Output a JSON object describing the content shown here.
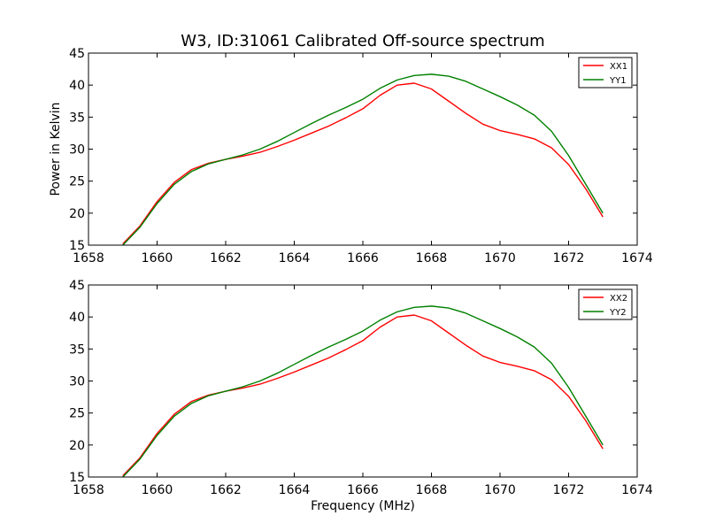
{
  "chart_data": [
    {
      "type": "line",
      "title": "W3, ID:31061 Calibrated Off-source spectrum",
      "xlabel": "",
      "ylabel": "Power in Kelvin",
      "xlim": [
        1658,
        1674
      ],
      "ylim": [
        15,
        45
      ],
      "xticks": [
        1658,
        1660,
        1662,
        1664,
        1666,
        1668,
        1670,
        1672,
        1674
      ],
      "yticks": [
        15,
        20,
        25,
        30,
        35,
        40,
        45
      ],
      "legend_position": "top-right",
      "series": [
        {
          "name": "XX1",
          "color": "#ff0000",
          "x": [
            1659.0,
            1659.5,
            1660.0,
            1660.5,
            1661.0,
            1661.5,
            1662.0,
            1662.5,
            1663.0,
            1663.5,
            1664.0,
            1664.5,
            1665.0,
            1665.5,
            1666.0,
            1666.5,
            1667.0,
            1667.5,
            1668.0,
            1668.5,
            1669.0,
            1669.5,
            1670.0,
            1670.5,
            1671.0,
            1671.5,
            1672.0,
            1672.5,
            1673.0
          ],
          "y": [
            15.2,
            18.0,
            21.8,
            24.8,
            26.8,
            27.8,
            28.4,
            28.9,
            29.5,
            30.4,
            31.4,
            32.5,
            33.6,
            34.9,
            36.3,
            38.4,
            40.0,
            40.3,
            39.4,
            37.5,
            35.6,
            33.9,
            32.9,
            32.3,
            31.6,
            30.2,
            27.6,
            23.8,
            19.4
          ]
        },
        {
          "name": "YY1",
          "color": "#008000",
          "x": [
            1659.0,
            1659.5,
            1660.0,
            1660.5,
            1661.0,
            1661.5,
            1662.0,
            1662.5,
            1663.0,
            1663.5,
            1664.0,
            1664.5,
            1665.0,
            1665.5,
            1666.0,
            1666.5,
            1667.0,
            1667.5,
            1668.0,
            1668.5,
            1669.0,
            1669.5,
            1670.0,
            1670.5,
            1671.0,
            1671.5,
            1672.0,
            1672.5,
            1673.0
          ],
          "y": [
            15.0,
            17.8,
            21.5,
            24.5,
            26.5,
            27.7,
            28.4,
            29.1,
            30.0,
            31.2,
            32.6,
            34.0,
            35.3,
            36.5,
            37.8,
            39.5,
            40.8,
            41.5,
            41.7,
            41.4,
            40.6,
            39.4,
            38.2,
            36.9,
            35.3,
            32.8,
            29.0,
            24.5,
            20.0
          ]
        }
      ]
    },
    {
      "type": "line",
      "title": "",
      "xlabel": "Frequency (MHz)",
      "ylabel": "",
      "xlim": [
        1658,
        1674
      ],
      "ylim": [
        15,
        45
      ],
      "xticks": [
        1658,
        1660,
        1662,
        1664,
        1666,
        1668,
        1670,
        1672,
        1674
      ],
      "yticks": [
        15,
        20,
        25,
        30,
        35,
        40,
        45
      ],
      "legend_position": "top-right",
      "series": [
        {
          "name": "XX2",
          "color": "#ff0000",
          "x": [
            1659.0,
            1659.5,
            1660.0,
            1660.5,
            1661.0,
            1661.5,
            1662.0,
            1662.5,
            1663.0,
            1663.5,
            1664.0,
            1664.5,
            1665.0,
            1665.5,
            1666.0,
            1666.5,
            1667.0,
            1667.5,
            1668.0,
            1668.5,
            1669.0,
            1669.5,
            1670.0,
            1670.5,
            1671.0,
            1671.5,
            1672.0,
            1672.5,
            1673.0
          ],
          "y": [
            15.2,
            18.0,
            21.8,
            24.8,
            26.8,
            27.8,
            28.4,
            28.9,
            29.5,
            30.4,
            31.4,
            32.5,
            33.6,
            34.9,
            36.3,
            38.4,
            40.0,
            40.3,
            39.4,
            37.5,
            35.6,
            33.9,
            32.9,
            32.3,
            31.6,
            30.2,
            27.6,
            23.8,
            19.4
          ]
        },
        {
          "name": "YY2",
          "color": "#008000",
          "x": [
            1659.0,
            1659.5,
            1660.0,
            1660.5,
            1661.0,
            1661.5,
            1662.0,
            1662.5,
            1663.0,
            1663.5,
            1664.0,
            1664.5,
            1665.0,
            1665.5,
            1666.0,
            1666.5,
            1667.0,
            1667.5,
            1668.0,
            1668.5,
            1669.0,
            1669.5,
            1670.0,
            1670.5,
            1671.0,
            1671.5,
            1672.0,
            1672.5,
            1673.0
          ],
          "y": [
            15.0,
            17.8,
            21.5,
            24.5,
            26.5,
            27.7,
            28.4,
            29.1,
            30.0,
            31.2,
            32.6,
            34.0,
            35.3,
            36.5,
            37.8,
            39.5,
            40.8,
            41.5,
            41.7,
            41.4,
            40.6,
            39.4,
            38.2,
            36.9,
            35.3,
            32.8,
            29.0,
            24.5,
            20.0
          ]
        }
      ]
    }
  ]
}
